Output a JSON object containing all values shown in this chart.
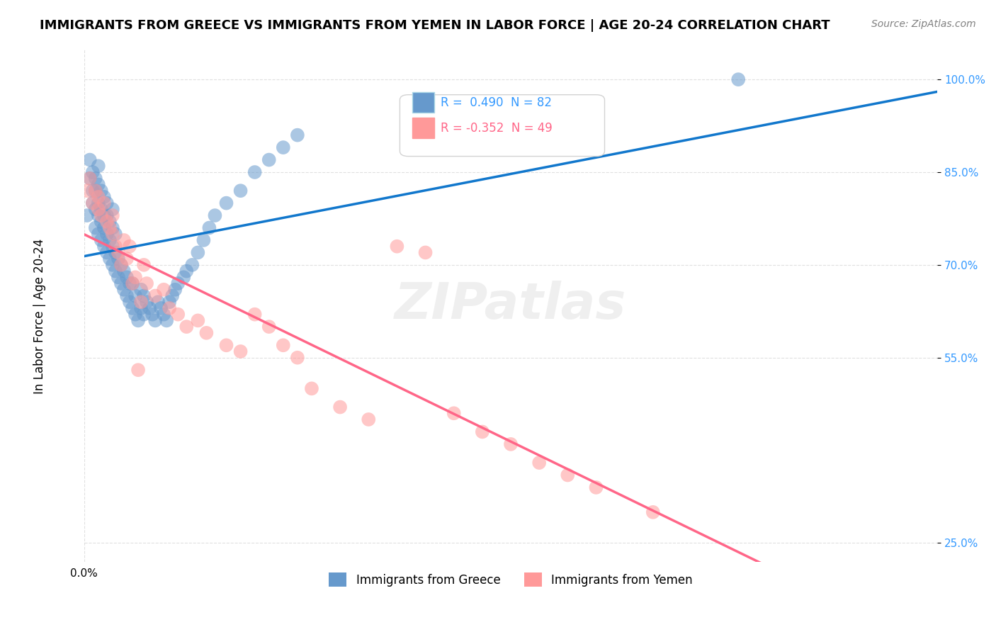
{
  "title": "IMMIGRANTS FROM GREECE VS IMMIGRANTS FROM YEMEN IN LABOR FORCE | AGE 20-24 CORRELATION CHART",
  "source": "Source: ZipAtlas.com",
  "xlabel": "",
  "ylabel": "In Labor Force | Age 20-24",
  "xlim": [
    0.0,
    0.3
  ],
  "ylim": [
    0.22,
    1.05
  ],
  "yticks": [
    0.25,
    0.55,
    0.7,
    0.85,
    1.0
  ],
  "ytick_labels": [
    "25.0%",
    "55.0%",
    "70.0%",
    "85.0%",
    "100.0%"
  ],
  "xticks": [
    0.0,
    0.05,
    0.1,
    0.15,
    0.2,
    0.25,
    0.3
  ],
  "xtick_labels": [
    "0.0%",
    "",
    "",
    "",
    "",
    "",
    ""
  ],
  "legend_greece": "Immigrants from Greece",
  "legend_yemen": "Immigrants from Yemen",
  "r_greece": 0.49,
  "n_greece": 82,
  "r_yemen": -0.352,
  "n_yemen": 49,
  "greece_color": "#6699CC",
  "yemen_color": "#FF9999",
  "greece_line_color": "#1177CC",
  "yemen_line_color": "#FF6688",
  "watermark": "ZIPatlas",
  "greece_scatter_x": [
    0.001,
    0.002,
    0.002,
    0.003,
    0.003,
    0.003,
    0.004,
    0.004,
    0.004,
    0.004,
    0.005,
    0.005,
    0.005,
    0.005,
    0.005,
    0.006,
    0.006,
    0.006,
    0.006,
    0.007,
    0.007,
    0.007,
    0.007,
    0.008,
    0.008,
    0.008,
    0.008,
    0.009,
    0.009,
    0.009,
    0.01,
    0.01,
    0.01,
    0.01,
    0.011,
    0.011,
    0.011,
    0.012,
    0.012,
    0.013,
    0.013,
    0.014,
    0.014,
    0.015,
    0.015,
    0.016,
    0.016,
    0.017,
    0.017,
    0.018,
    0.018,
    0.019,
    0.02,
    0.02,
    0.021,
    0.021,
    0.022,
    0.023,
    0.024,
    0.025,
    0.026,
    0.027,
    0.028,
    0.029,
    0.03,
    0.031,
    0.032,
    0.033,
    0.035,
    0.036,
    0.038,
    0.04,
    0.042,
    0.044,
    0.046,
    0.05,
    0.055,
    0.06,
    0.065,
    0.07,
    0.075,
    0.23
  ],
  "greece_scatter_y": [
    0.78,
    0.84,
    0.87,
    0.8,
    0.82,
    0.85,
    0.76,
    0.79,
    0.82,
    0.84,
    0.75,
    0.78,
    0.8,
    0.83,
    0.86,
    0.74,
    0.77,
    0.79,
    0.82,
    0.73,
    0.76,
    0.78,
    0.81,
    0.72,
    0.75,
    0.78,
    0.8,
    0.71,
    0.74,
    0.77,
    0.7,
    0.73,
    0.76,
    0.79,
    0.69,
    0.72,
    0.75,
    0.68,
    0.71,
    0.67,
    0.7,
    0.66,
    0.69,
    0.65,
    0.68,
    0.64,
    0.67,
    0.63,
    0.67,
    0.62,
    0.65,
    0.61,
    0.63,
    0.66,
    0.62,
    0.65,
    0.64,
    0.63,
    0.62,
    0.61,
    0.64,
    0.63,
    0.62,
    0.61,
    0.64,
    0.65,
    0.66,
    0.67,
    0.68,
    0.69,
    0.7,
    0.72,
    0.74,
    0.76,
    0.78,
    0.8,
    0.82,
    0.85,
    0.87,
    0.89,
    0.91,
    1.0
  ],
  "yemen_scatter_x": [
    0.001,
    0.002,
    0.003,
    0.004,
    0.005,
    0.005,
    0.006,
    0.007,
    0.008,
    0.009,
    0.01,
    0.01,
    0.011,
    0.012,
    0.013,
    0.014,
    0.015,
    0.016,
    0.017,
    0.018,
    0.019,
    0.02,
    0.021,
    0.022,
    0.025,
    0.028,
    0.03,
    0.033,
    0.036,
    0.04,
    0.043,
    0.05,
    0.055,
    0.06,
    0.065,
    0.07,
    0.075,
    0.08,
    0.09,
    0.1,
    0.11,
    0.12,
    0.13,
    0.14,
    0.15,
    0.16,
    0.17,
    0.18,
    0.2
  ],
  "yemen_scatter_y": [
    0.82,
    0.84,
    0.8,
    0.82,
    0.79,
    0.81,
    0.78,
    0.8,
    0.77,
    0.76,
    0.75,
    0.78,
    0.73,
    0.72,
    0.7,
    0.74,
    0.71,
    0.73,
    0.67,
    0.68,
    0.53,
    0.64,
    0.7,
    0.67,
    0.65,
    0.66,
    0.63,
    0.62,
    0.6,
    0.61,
    0.59,
    0.57,
    0.56,
    0.62,
    0.6,
    0.57,
    0.55,
    0.5,
    0.47,
    0.45,
    0.73,
    0.72,
    0.46,
    0.43,
    0.41,
    0.38,
    0.36,
    0.34,
    0.3
  ]
}
